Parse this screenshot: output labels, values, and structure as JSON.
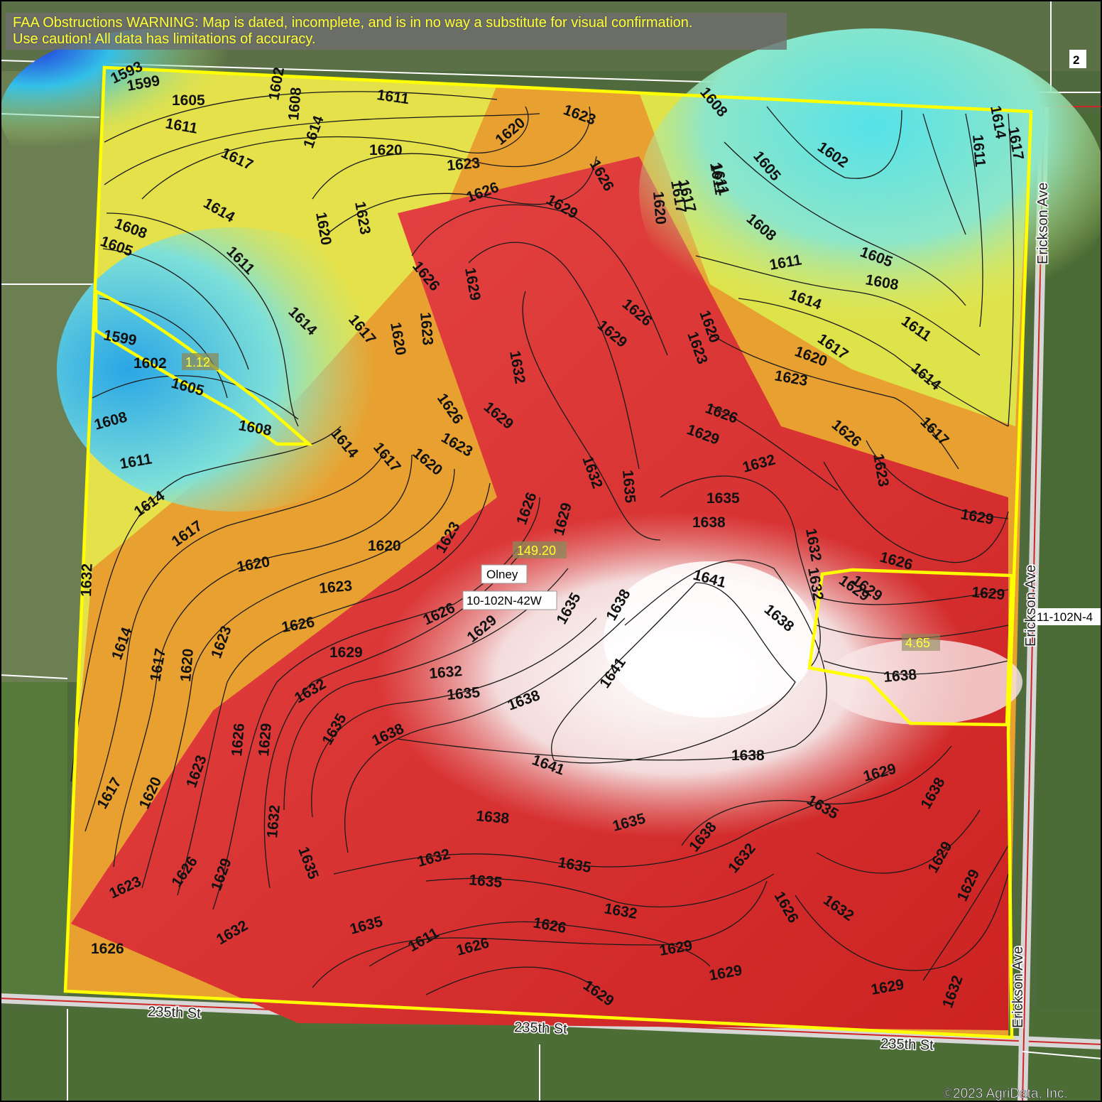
{
  "warning": {
    "line1": "FAA Obstructions WARNING: Map is dated, incomplete, and is in no way a substitute for visual confirmation.",
    "line2": "Use caution! All data has limitations of accuracy."
  },
  "section_number_top_right": "2",
  "roads": {
    "street_west": "235th St",
    "street_center": "235th St",
    "street_east": "235th St",
    "avenue_north": "Erickson Ave",
    "avenue_middle": "Erickson Ave",
    "avenue_south": "Erickson Ave"
  },
  "labels": {
    "township": "Olney",
    "section_main": "10-102N-42W",
    "section_east": "11-102N-4"
  },
  "acreage": {
    "field_main": "149.20",
    "field_west": "1.12",
    "field_east": "4.65"
  },
  "contours": [
    "1593",
    "1599",
    "1605",
    "1611",
    "1602",
    "1608",
    "1614",
    "1611",
    "1617",
    "1620",
    "1620",
    "1623",
    "1623",
    "1626",
    "1629",
    "1608",
    "1605",
    "1614",
    "1611",
    "1620",
    "1623",
    "1614",
    "1617",
    "1626",
    "1629",
    "1623",
    "1620",
    "1617",
    "1611",
    "1608",
    "1605",
    "1602",
    "1611",
    "1617",
    "1614",
    "1608",
    "1620",
    "1626",
    "1611",
    "1617",
    "1611",
    "1614",
    "1605",
    "1608",
    "1611",
    "1614",
    "1617",
    "1620",
    "1623",
    "1626",
    "1629",
    "1632",
    "1626",
    "1629",
    "1623",
    "1620",
    "1626",
    "1623",
    "1617",
    "1599",
    "1602",
    "1605",
    "1608",
    "1608",
    "1611",
    "1614",
    "1617",
    "1614",
    "1617",
    "1620",
    "1623",
    "1626",
    "1629",
    "1632",
    "1626",
    "1629",
    "1632",
    "1635",
    "1635",
    "1638",
    "1629",
    "1632",
    "1623",
    "1620",
    "1626",
    "1629",
    "1620",
    "1623",
    "1626",
    "1629",
    "1635",
    "1638",
    "1641",
    "1638",
    "1632",
    "1629",
    "1629",
    "1638",
    "1614",
    "1617",
    "1620",
    "1623",
    "1632",
    "1635",
    "1638",
    "1641",
    "1638",
    "1626",
    "1629",
    "1635",
    "1629",
    "1632",
    "1617",
    "1620",
    "1623",
    "1626",
    "1629",
    "1638",
    "1641",
    "1638",
    "1635",
    "1623",
    "1626",
    "1629",
    "1632",
    "1638",
    "1638",
    "1635",
    "1635",
    "1632",
    "1635",
    "1635",
    "1632",
    "1632",
    "1632",
    "1629",
    "1629",
    "1629",
    "1626",
    "1626",
    "1626",
    "1629",
    "1629",
    "1626",
    "1611",
    "1629",
    "1632",
    "1632",
    "1632",
    "1635"
  ],
  "copyright": "©2023 AgriData, Inc."
}
